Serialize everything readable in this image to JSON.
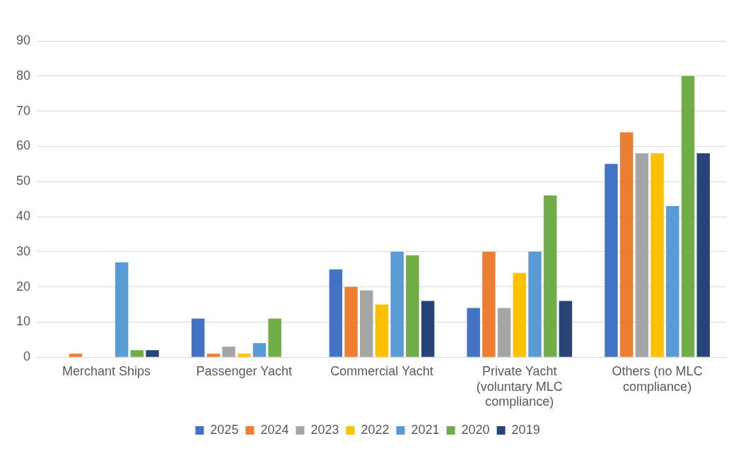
{
  "chart_data": {
    "type": "bar",
    "categories": [
      "Merchant Ships",
      "Passenger Yacht",
      "Commercial Yacht",
      "Private Yacht (voluntary MLC compliance)",
      "Others (no MLC compliance)"
    ],
    "series": [
      {
        "name": "2025",
        "color": "#4472c4",
        "values": [
          0,
          11,
          25,
          14,
          55
        ]
      },
      {
        "name": "2024",
        "color": "#ed7d31",
        "values": [
          1,
          1,
          20,
          30,
          64
        ]
      },
      {
        "name": "2023",
        "color": "#a5a5a5",
        "values": [
          0,
          3,
          19,
          14,
          58
        ]
      },
      {
        "name": "2022",
        "color": "#ffc000",
        "values": [
          0,
          1,
          15,
          24,
          58
        ]
      },
      {
        "name": "2021",
        "color": "#5b9bd5",
        "values": [
          27,
          4,
          30,
          30,
          43
        ]
      },
      {
        "name": "2020",
        "color": "#70ad47",
        "values": [
          2,
          11,
          29,
          46,
          80
        ]
      },
      {
        "name": "2019",
        "color": "#264478",
        "values": [
          2,
          0,
          16,
          16,
          58
        ]
      }
    ],
    "ylim": [
      0,
      90
    ],
    "yticks": [
      0,
      10,
      20,
      30,
      40,
      50,
      60,
      70,
      80,
      90
    ],
    "grid": "y",
    "legend": "bottom"
  }
}
